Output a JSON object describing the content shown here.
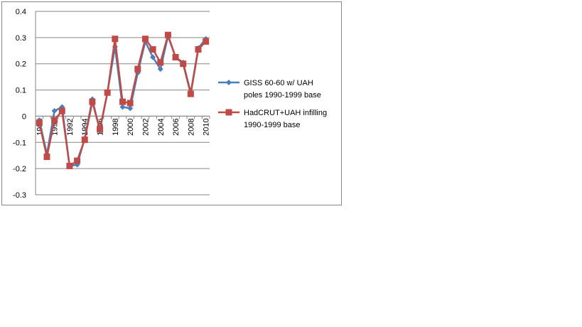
{
  "chart_data": {
    "type": "line",
    "title": "",
    "xlabel": "",
    "ylabel": "",
    "x": [
      1988,
      1989,
      1990,
      1991,
      1992,
      1993,
      1994,
      1995,
      1996,
      1997,
      1998,
      1999,
      2000,
      2001,
      2002,
      2003,
      2004,
      2005,
      2006,
      2007,
      2008,
      2009,
      2010
    ],
    "x_tick_labels": [
      "1988",
      "1990",
      "1992",
      "1994",
      "1996",
      "1998",
      "2000",
      "2002",
      "2004",
      "2006",
      "2008",
      "2010"
    ],
    "ylim": [
      -0.3,
      0.4
    ],
    "y_ticks": [
      "-0.3",
      "-0.2",
      "-0.1",
      "0",
      "0.1",
      "0.2",
      "0.3",
      "0.4"
    ],
    "grid": true,
    "legend_position": "right",
    "series": [
      {
        "name_lines": [
          "GISS 60-60 w/ UAH",
          "poles 1990-1999 base"
        ],
        "color": "#4a7ebb",
        "marker": "diamond",
        "values": [
          -0.015,
          -0.145,
          0.02,
          0.035,
          -0.19,
          -0.185,
          -0.085,
          0.065,
          -0.055,
          0.09,
          0.265,
          0.035,
          0.03,
          0.165,
          0.285,
          0.225,
          0.18,
          0.305,
          0.225,
          0.205,
          0.09,
          0.26,
          0.295
        ]
      },
      {
        "name_lines": [
          "HadCRUT+UAH infilling",
          "1990-1999 base"
        ],
        "color": "#be4b48",
        "marker": "square",
        "values": [
          -0.025,
          -0.155,
          -0.015,
          0.02,
          -0.19,
          -0.17,
          -0.09,
          0.055,
          -0.05,
          0.09,
          0.295,
          0.055,
          0.05,
          0.18,
          0.295,
          0.255,
          0.205,
          0.31,
          0.225,
          0.2,
          0.085,
          0.255,
          0.285
        ]
      }
    ]
  }
}
